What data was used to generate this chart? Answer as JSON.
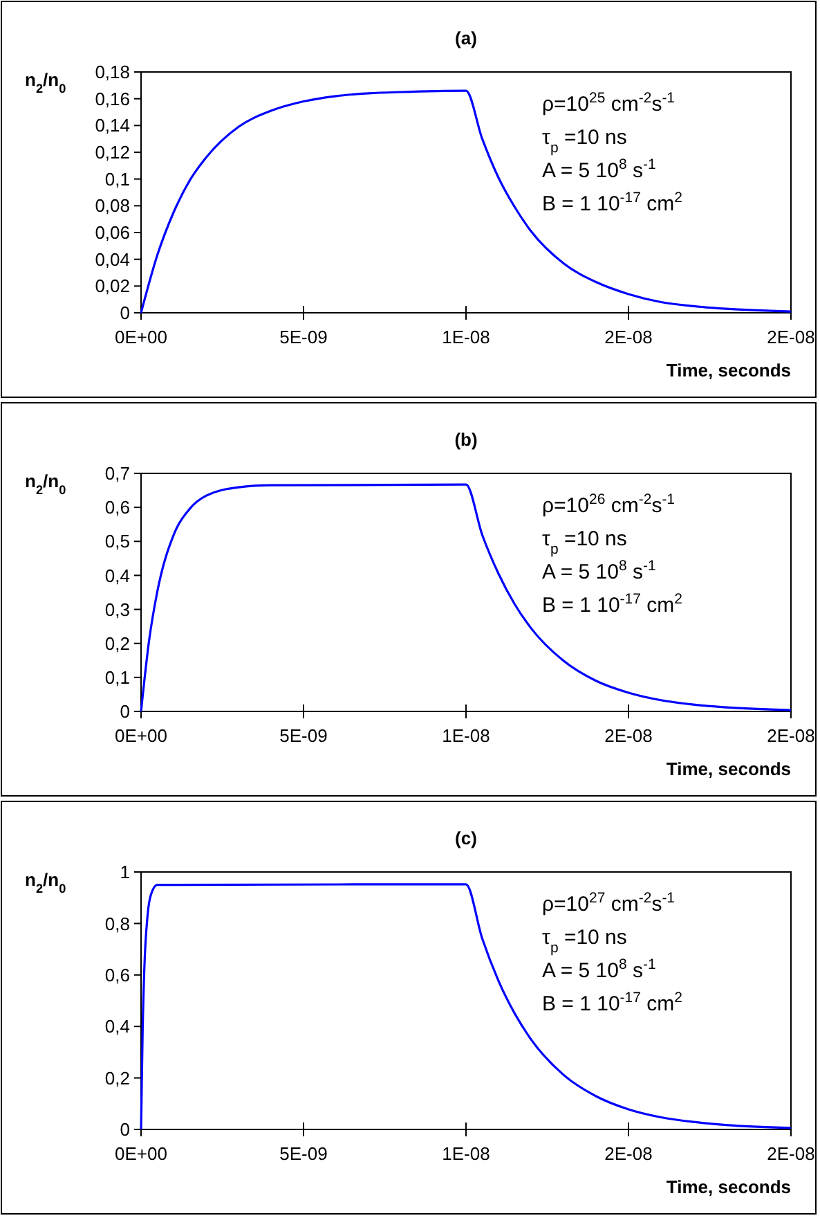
{
  "chart_data": [
    {
      "type": "line",
      "title": "(a)",
      "xlabel": "Time, seconds",
      "ylabel": "n$_{2}$/n$_{0}$",
      "xlim": [
        0,
        2e-08
      ],
      "xticks": [
        {
          "value": 0,
          "label": "0E+00"
        },
        {
          "value": 5e-09,
          "label": "5E-09"
        },
        {
          "value": 1e-08,
          "label": "1E-08"
        },
        {
          "value": 1.5e-08,
          "label": "2E-08"
        },
        {
          "value": 2e-08,
          "label": "2E-08"
        }
      ],
      "ylim": [
        0,
        0.18
      ],
      "yticks": [
        {
          "value": 0,
          "label": "0"
        },
        {
          "value": 0.02,
          "label": "0,02"
        },
        {
          "value": 0.04,
          "label": "0,04"
        },
        {
          "value": 0.06,
          "label": "0,06"
        },
        {
          "value": 0.08,
          "label": "0,08"
        },
        {
          "value": 0.1,
          "label": "0,1"
        },
        {
          "value": 0.12,
          "label": "0,12"
        },
        {
          "value": 0.14,
          "label": "0,14"
        },
        {
          "value": 0.16,
          "label": "0,16"
        },
        {
          "value": 0.18,
          "label": "0,18"
        }
      ],
      "annotations": [
        "ρ=10$^{25}$ cm$^{-2}$s$^{-1}$",
        "τ$_{p}$ =10 ns",
        "A = 5 10$^{8}$ s$^{-1}$",
        "B = 1 10$^{-17}$ cm$^{2}$"
      ],
      "series": [
        {
          "color": "#0000ff",
          "x": [
            0,
            5e-10,
            1e-09,
            1.5e-09,
            2e-09,
            3e-09,
            4e-09,
            5e-09,
            6e-09,
            7e-09,
            8e-09,
            1e-08,
            1.05e-08,
            1.1e-08,
            1.15e-08,
            1.2e-08,
            1.3e-08,
            1.4e-08,
            1.5e-08,
            1.6e-08,
            1.7e-08,
            1.8e-08,
            2e-08
          ],
          "values": [
            0,
            0.043,
            0.075,
            0.099,
            0.116,
            0.139,
            0.151,
            0.158,
            0.162,
            0.164,
            0.165,
            0.166,
            0.13,
            0.101,
            0.079,
            0.061,
            0.037,
            0.023,
            0.014,
            0.008,
            0.005,
            0.003,
            0.001
          ]
        }
      ]
    },
    {
      "type": "line",
      "title": "(b)",
      "xlabel": "Time, seconds",
      "ylabel": "n$_{2}$/n$_{0}$",
      "xlim": [
        0,
        2e-08
      ],
      "xticks": [
        {
          "value": 0,
          "label": "0E+00"
        },
        {
          "value": 5e-09,
          "label": "5E-09"
        },
        {
          "value": 1e-08,
          "label": "1E-08"
        },
        {
          "value": 1.5e-08,
          "label": "2E-08"
        },
        {
          "value": 2e-08,
          "label": "2E-08"
        }
      ],
      "ylim": [
        0,
        0.7
      ],
      "yticks": [
        {
          "value": 0,
          "label": "0"
        },
        {
          "value": 0.1,
          "label": "0,1"
        },
        {
          "value": 0.2,
          "label": "0,2"
        },
        {
          "value": 0.3,
          "label": "0,3"
        },
        {
          "value": 0.4,
          "label": "0,4"
        },
        {
          "value": 0.5,
          "label": "0,5"
        },
        {
          "value": 0.6,
          "label": "0,6"
        },
        {
          "value": 0.7,
          "label": "0,7"
        }
      ],
      "annotations": [
        "ρ=10$^{26}$ cm$^{-2}$s$^{-1}$",
        "τ$_{p}$ =10 ns",
        "A = 5 10$^{8}$ s$^{-1}$",
        "B = 1 10$^{-17}$ cm$^{2}$"
      ],
      "series": [
        {
          "color": "#0000ff",
          "x": [
            0,
            2.5e-10,
            5e-10,
            1e-09,
            1.5e-09,
            2e-09,
            3e-09,
            4e-09,
            1e-08,
            1.05e-08,
            1.1e-08,
            1.15e-08,
            1.2e-08,
            1.3e-08,
            1.4e-08,
            1.5e-08,
            1.6e-08,
            1.7e-08,
            1.8e-08,
            2e-08
          ],
          "values": [
            0,
            0.21,
            0.352,
            0.518,
            0.596,
            0.634,
            0.659,
            0.665,
            0.667,
            0.519,
            0.405,
            0.315,
            0.245,
            0.149,
            0.09,
            0.055,
            0.033,
            0.02,
            0.012,
            0.004
          ]
        }
      ]
    },
    {
      "type": "line",
      "title": "(c)",
      "xlabel": "Time, seconds",
      "ylabel": "n$_{2}$/n$_{0}$",
      "xlim": [
        0,
        2e-08
      ],
      "xticks": [
        {
          "value": 0,
          "label": "0E+00"
        },
        {
          "value": 5e-09,
          "label": "5E-09"
        },
        {
          "value": 1e-08,
          "label": "1E-08"
        },
        {
          "value": 1.5e-08,
          "label": "2E-08"
        },
        {
          "value": 2e-08,
          "label": "2E-08"
        }
      ],
      "ylim": [
        0,
        1
      ],
      "yticks": [
        {
          "value": 0,
          "label": "0"
        },
        {
          "value": 0.2,
          "label": "0,2"
        },
        {
          "value": 0.4,
          "label": "0,4"
        },
        {
          "value": 0.6,
          "label": "0,6"
        },
        {
          "value": 0.8,
          "label": "0,8"
        },
        {
          "value": 1,
          "label": "1"
        }
      ],
      "annotations": [
        "ρ=10$^{27}$ cm$^{-2}$s$^{-1}$",
        "τ$_{p}$ =10 ns",
        "A = 5 10$^{8}$ s$^{-1}$",
        "B = 1 10$^{-17}$ cm$^{2}$"
      ],
      "series": [
        {
          "color": "#0000ff",
          "x": [
            0,
            5e-11,
            1e-10,
            2e-10,
            3e-10,
            5e-10,
            1e-08,
            1.05e-08,
            1.1e-08,
            1.15e-08,
            1.2e-08,
            1.3e-08,
            1.4e-08,
            1.5e-08,
            1.6e-08,
            1.7e-08,
            1.8e-08,
            2e-08
          ],
          "values": [
            0,
            0.39,
            0.62,
            0.83,
            0.91,
            0.95,
            0.952,
            0.741,
            0.577,
            0.45,
            0.35,
            0.212,
            0.129,
            0.078,
            0.047,
            0.029,
            0.017,
            0.006
          ]
        }
      ]
    }
  ]
}
